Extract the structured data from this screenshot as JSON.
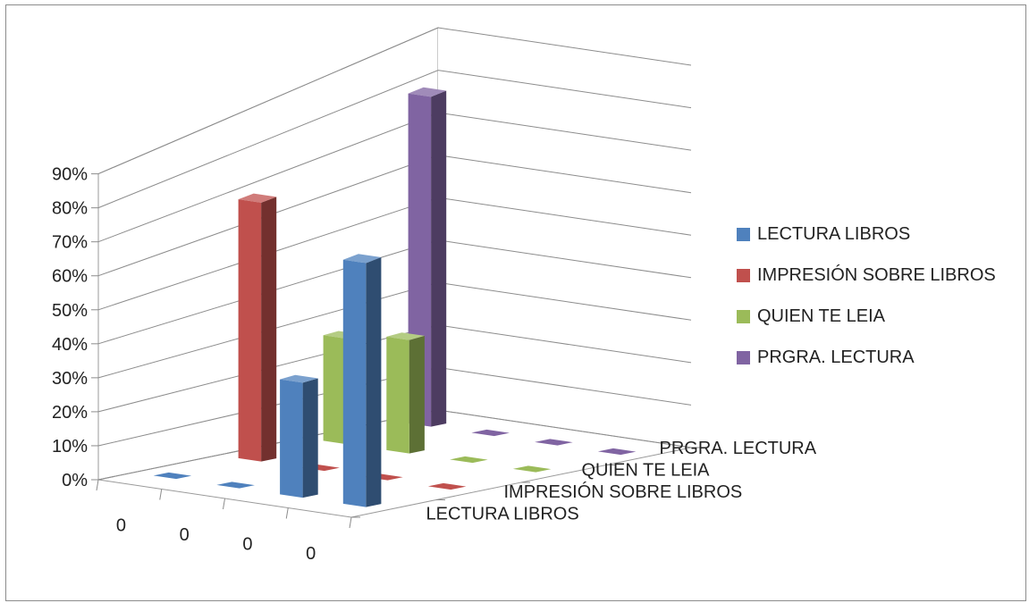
{
  "chart_data": {
    "type": "bar",
    "variant": "3d-column",
    "title": "",
    "xlabel": "",
    "ylabel": "",
    "categories": [
      "0",
      "0",
      "0",
      "0"
    ],
    "depth_labels": [
      "LECTURA LIBROS",
      "IMPRESIÓN SOBRE LIBROS",
      "QUIEN TE LEIA",
      "PRGRA. LECTURA"
    ],
    "y_ticks": [
      "0%",
      "10%",
      "20%",
      "30%",
      "40%",
      "50%",
      "60%",
      "70%",
      "80%",
      "90%"
    ],
    "ylim": [
      0,
      90
    ],
    "y_unit": "%",
    "grid": true,
    "legend_position": "right",
    "series": [
      {
        "name": "LECTURA LIBROS",
        "color": "#4f81bd",
        "values": [
          0,
          0,
          33,
          70
        ]
      },
      {
        "name": "IMPRESIÓN SOBRE LIBROS",
        "color": "#c0504d",
        "values": [
          70,
          0,
          0,
          0
        ]
      },
      {
        "name": "QUIEN TE LEIA",
        "color": "#9bbb59",
        "values": [
          27,
          29,
          0,
          0
        ]
      },
      {
        "name": "PRGRA. LECTURA",
        "color": "#8064a2",
        "values": [
          80,
          0,
          0,
          0
        ]
      }
    ]
  }
}
